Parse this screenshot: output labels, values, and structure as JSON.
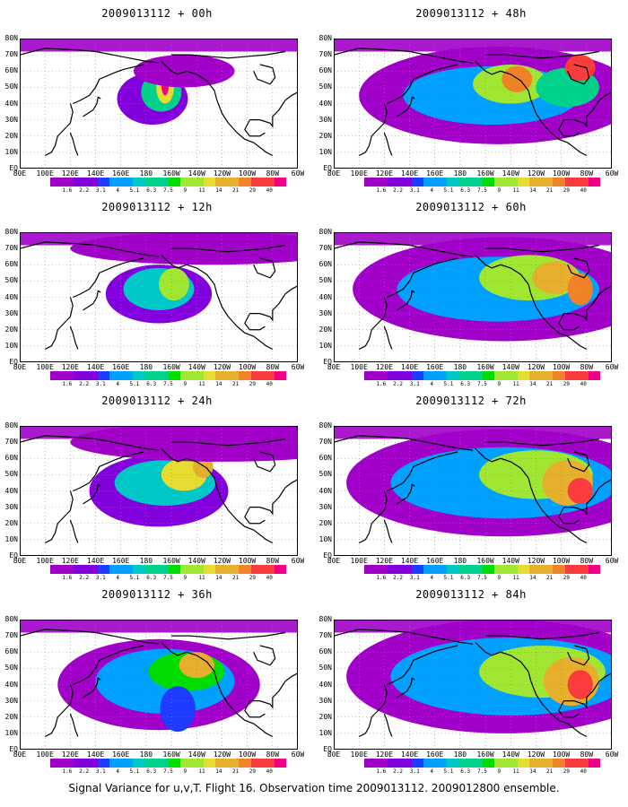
{
  "chart_data": {
    "type": "heatmap",
    "caption": "Signal Variance for u,v,T. Flight 16. Observation time 2009013112. 2009012800 ensemble.",
    "x_tick_labels": [
      "80E",
      "100E",
      "120E",
      "140E",
      "160E",
      "180",
      "160W",
      "140W",
      "120W",
      "100W",
      "80W",
      "60W"
    ],
    "y_tick_labels": [
      "EQ",
      "10N",
      "20N",
      "30N",
      "40N",
      "50N",
      "60N",
      "70N",
      "80N"
    ],
    "colorbar": {
      "levels": [
        "1.6",
        "2.2",
        "3.1",
        "4",
        "5.1",
        "6.3",
        "7.5",
        "9",
        "11",
        "14",
        "21",
        "29",
        "40"
      ],
      "colors": [
        "#a000c8",
        "#8200dc",
        "#1e3cff",
        "#00a0ff",
        "#00c8c8",
        "#00d28c",
        "#00dc00",
        "#a0e632",
        "#e6dc32",
        "#e6af2d",
        "#f08228",
        "#fa3c3c",
        "#f00082"
      ]
    },
    "panels": [
      {
        "title": "2009013112 + 00h",
        "blobs": [
          {
            "lon": -175,
            "lat": 43,
            "rx": 28,
            "ry": 16,
            "level": 1
          },
          {
            "lon": -168,
            "lat": 47,
            "rx": 16,
            "ry": 12,
            "level": 5
          },
          {
            "lon": -165,
            "lat": 50,
            "rx": 7,
            "ry": 10,
            "level": 8
          },
          {
            "lon": -165,
            "lat": 52,
            "rx": 3,
            "ry": 7,
            "level": 12
          },
          {
            "lon": -150,
            "lat": 60,
            "rx": 40,
            "ry": 10,
            "level": 0
          }
        ]
      },
      {
        "title": "2009013112 + 12h",
        "blobs": [
          {
            "lon": -170,
            "lat": 42,
            "rx": 42,
            "ry": 18,
            "level": 1
          },
          {
            "lon": -170,
            "lat": 45,
            "rx": 28,
            "ry": 13,
            "level": 4
          },
          {
            "lon": -158,
            "lat": 48,
            "rx": 12,
            "ry": 10,
            "level": 7
          },
          {
            "lon": -130,
            "lat": 70,
            "rx": 110,
            "ry": 10,
            "level": 0
          }
        ]
      },
      {
        "title": "2009013112 + 24h",
        "blobs": [
          {
            "lon": -170,
            "lat": 40,
            "rx": 55,
            "ry": 22,
            "level": 1
          },
          {
            "lon": -165,
            "lat": 45,
            "rx": 40,
            "ry": 14,
            "level": 4
          },
          {
            "lon": -150,
            "lat": 50,
            "rx": 18,
            "ry": 10,
            "level": 8
          },
          {
            "lon": -135,
            "lat": 55,
            "rx": 8,
            "ry": 7,
            "level": 9
          },
          {
            "lon": -120,
            "lat": 70,
            "rx": 120,
            "ry": 12,
            "level": 0
          }
        ]
      },
      {
        "title": "2009013112 + 36h",
        "blobs": [
          {
            "lon": -170,
            "lat": 40,
            "rx": 80,
            "ry": 28,
            "level": 0
          },
          {
            "lon": -165,
            "lat": 42,
            "rx": 55,
            "ry": 20,
            "level": 3
          },
          {
            "lon": -148,
            "lat": 48,
            "rx": 30,
            "ry": 12,
            "level": 6
          },
          {
            "lon": -140,
            "lat": 52,
            "rx": 14,
            "ry": 8,
            "level": 9
          },
          {
            "lon": -155,
            "lat": 25,
            "rx": 14,
            "ry": 14,
            "level": 2
          }
        ]
      },
      {
        "title": "2009013112 + 48h",
        "blobs": [
          {
            "lon": -150,
            "lat": 45,
            "rx": 110,
            "ry": 30,
            "level": 0
          },
          {
            "lon": -155,
            "lat": 45,
            "rx": 70,
            "ry": 18,
            "level": 3
          },
          {
            "lon": -140,
            "lat": 52,
            "rx": 30,
            "ry": 12,
            "level": 7
          },
          {
            "lon": -135,
            "lat": 55,
            "rx": 12,
            "ry": 8,
            "level": 10
          },
          {
            "lon": -95,
            "lat": 50,
            "rx": 25,
            "ry": 12,
            "level": 5
          },
          {
            "lon": -85,
            "lat": 62,
            "rx": 12,
            "ry": 8,
            "level": 11
          }
        ]
      },
      {
        "title": "2009013112 + 60h",
        "blobs": [
          {
            "lon": -145,
            "lat": 45,
            "rx": 120,
            "ry": 32,
            "level": 0
          },
          {
            "lon": -150,
            "lat": 45,
            "rx": 80,
            "ry": 20,
            "level": 3
          },
          {
            "lon": -125,
            "lat": 52,
            "rx": 40,
            "ry": 14,
            "level": 7
          },
          {
            "lon": -105,
            "lat": 52,
            "rx": 18,
            "ry": 10,
            "level": 9
          },
          {
            "lon": -85,
            "lat": 45,
            "rx": 10,
            "ry": 10,
            "level": 10
          }
        ]
      },
      {
        "title": "2009013112 + 72h",
        "blobs": [
          {
            "lon": -145,
            "lat": 45,
            "rx": 125,
            "ry": 33,
            "level": 0
          },
          {
            "lon": -145,
            "lat": 45,
            "rx": 90,
            "ry": 22,
            "level": 3
          },
          {
            "lon": -120,
            "lat": 50,
            "rx": 45,
            "ry": 15,
            "level": 7
          },
          {
            "lon": -95,
            "lat": 45,
            "rx": 20,
            "ry": 14,
            "level": 9
          },
          {
            "lon": -85,
            "lat": 40,
            "rx": 10,
            "ry": 8,
            "level": 11
          }
        ]
      },
      {
        "title": "2009013112 + 84h",
        "blobs": [
          {
            "lon": -145,
            "lat": 45,
            "rx": 125,
            "ry": 35,
            "level": 0
          },
          {
            "lon": -140,
            "lat": 45,
            "rx": 95,
            "ry": 24,
            "level": 3
          },
          {
            "lon": -115,
            "lat": 48,
            "rx": 50,
            "ry": 16,
            "level": 7
          },
          {
            "lon": -92,
            "lat": 42,
            "rx": 22,
            "ry": 15,
            "level": 9
          },
          {
            "lon": -85,
            "lat": 40,
            "rx": 10,
            "ry": 9,
            "level": 11
          }
        ]
      }
    ]
  }
}
